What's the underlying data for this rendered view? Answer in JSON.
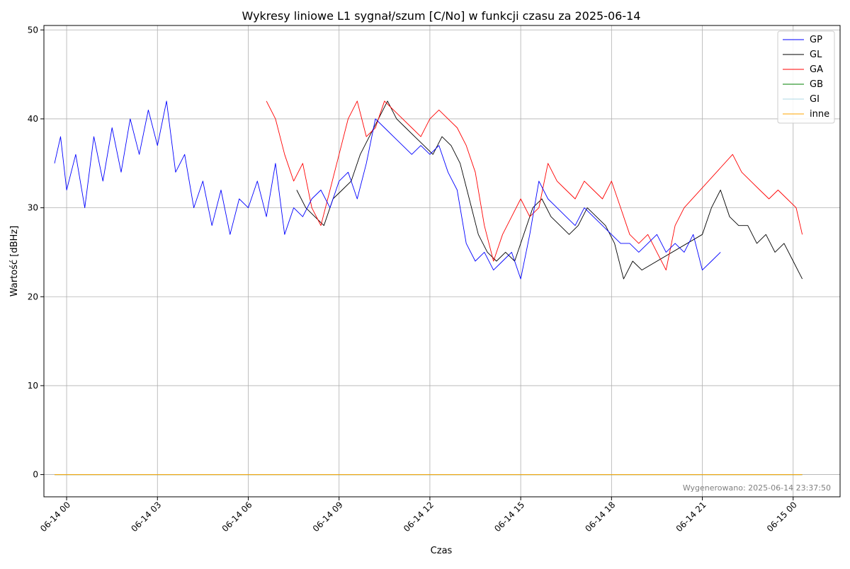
{
  "chart_data": {
    "type": "line",
    "title": "Wykresy liniowe L1 sygnał/szum [C/No] w funkcji czasu za 2025-06-14",
    "xlabel": "Czas",
    "ylabel": "Wartość [dBHz]",
    "xlim_hours": [
      -0.75,
      25.55
    ],
    "ylim": [
      -2.5,
      50.5
    ],
    "x_ticks": [
      {
        "hour": 0,
        "label": "06-14 00"
      },
      {
        "hour": 3,
        "label": "06-14 03"
      },
      {
        "hour": 6,
        "label": "06-14 06"
      },
      {
        "hour": 9,
        "label": "06-14 09"
      },
      {
        "hour": 12,
        "label": "06-14 12"
      },
      {
        "hour": 15,
        "label": "06-14 15"
      },
      {
        "hour": 18,
        "label": "06-14 18"
      },
      {
        "hour": 21,
        "label": "06-14 21"
      },
      {
        "hour": 24,
        "label": "06-15 00"
      }
    ],
    "y_ticks": [
      0,
      10,
      20,
      30,
      40,
      50
    ],
    "grid": true,
    "legend_position": "top-right",
    "footer": "Wygenerowano: 2025-06-14 23:37:50",
    "series": [
      {
        "name": "GP",
        "color": "#0000ff",
        "x": [
          -0.4,
          -0.2,
          0,
          0.3,
          0.6,
          0.9,
          1.2,
          1.5,
          1.8,
          2.1,
          2.4,
          2.7,
          3.0,
          3.3,
          3.6,
          3.9,
          4.2,
          4.5,
          4.8,
          5.1,
          5.4,
          5.7,
          6.0,
          6.3,
          6.6,
          6.9,
          7.2,
          7.5,
          7.8,
          8.1,
          8.4,
          8.7,
          9.0,
          9.3,
          9.6,
          9.9,
          10.2,
          10.5,
          10.8,
          11.1,
          11.4,
          11.7,
          12.0,
          12.3,
          12.6,
          12.9,
          13.2,
          13.5,
          13.8,
          14.1,
          14.4,
          14.7,
          15.0,
          15.3,
          15.6,
          15.9,
          16.2,
          16.5,
          16.8,
          17.1,
          17.4,
          17.7,
          18.0,
          18.3,
          18.6,
          18.9,
          19.2,
          19.5,
          19.8,
          20.1,
          20.4,
          20.7,
          21.0,
          21.3,
          21.6
        ],
        "values": [
          35,
          38,
          32,
          36,
          30,
          38,
          33,
          39,
          34,
          40,
          36,
          41,
          37,
          42,
          34,
          36,
          30,
          33,
          28,
          32,
          27,
          31,
          30,
          33,
          29,
          35,
          27,
          30,
          29,
          31,
          32,
          30,
          33,
          34,
          31,
          35,
          40,
          39,
          38,
          37,
          36,
          37,
          36,
          37,
          34,
          32,
          26,
          24,
          25,
          23,
          24,
          25,
          22,
          27,
          33,
          31,
          30,
          29,
          28,
          30,
          29,
          28,
          27,
          26,
          26,
          25,
          26,
          27,
          25,
          26,
          25,
          27,
          23,
          24,
          25
        ]
      },
      {
        "name": "GL",
        "color": "#000000",
        "x": [
          7.6,
          7.9,
          8.2,
          8.5,
          8.8,
          9.1,
          9.4,
          9.7,
          10.0,
          10.3,
          10.6,
          10.9,
          11.2,
          11.5,
          11.8,
          12.1,
          12.4,
          12.7,
          13.0,
          13.3,
          13.6,
          13.9,
          14.2,
          14.5,
          14.8,
          15.1,
          15.4,
          15.7,
          16.0,
          16.3,
          16.6,
          16.9,
          17.2,
          17.5,
          17.8,
          18.1,
          18.4,
          18.7,
          19.0,
          21.0,
          21.3,
          21.6,
          21.9,
          22.2,
          22.5,
          22.8,
          23.1,
          23.4,
          23.7,
          24.0,
          24.3
        ],
        "values": [
          32,
          30,
          29,
          28,
          31,
          32,
          33,
          36,
          38,
          40,
          42,
          40,
          39,
          38,
          37,
          36,
          38,
          37,
          35,
          31,
          27,
          25,
          24,
          25,
          24,
          27,
          30,
          31,
          29,
          28,
          27,
          28,
          30,
          29,
          28,
          26,
          22,
          24,
          23,
          27,
          30,
          32,
          29,
          28,
          28,
          26,
          27,
          25,
          26,
          24,
          22
        ]
      },
      {
        "name": "GA",
        "color": "#ff0000",
        "x": [
          6.6,
          6.9,
          7.2,
          7.5,
          7.8,
          8.1,
          8.4,
          8.7,
          9.0,
          9.3,
          9.6,
          9.9,
          10.2,
          10.5,
          10.8,
          11.1,
          11.4,
          11.7,
          12.0,
          12.3,
          12.6,
          12.9,
          13.2,
          13.5,
          13.8,
          14.1,
          14.4,
          14.7,
          15.0,
          15.3,
          15.6,
          15.9,
          16.2,
          16.5,
          16.8,
          17.1,
          17.4,
          17.7,
          18.0,
          18.3,
          18.6,
          18.9,
          19.2,
          19.5,
          19.8,
          20.1,
          20.4,
          22.0,
          22.3,
          22.6,
          22.9,
          23.2,
          23.5,
          23.8,
          24.1,
          24.3
        ],
        "values": [
          42,
          40,
          36,
          33,
          35,
          30,
          28,
          32,
          36,
          40,
          42,
          38,
          39,
          42,
          41,
          40,
          39,
          38,
          40,
          41,
          40,
          39,
          37,
          34,
          28,
          24,
          27,
          29,
          31,
          29,
          30,
          35,
          33,
          32,
          31,
          33,
          32,
          31,
          33,
          30,
          27,
          26,
          27,
          25,
          23,
          28,
          30,
          36,
          34,
          33,
          32,
          31,
          32,
          31,
          30,
          27
        ]
      },
      {
        "name": "GB",
        "color": "#008000",
        "x": [
          -0.4,
          24.3
        ],
        "values": [
          0,
          0
        ]
      },
      {
        "name": "GI",
        "color": "#add8e6",
        "x": [
          -0.4,
          24.3
        ],
        "values": [
          0,
          0
        ]
      },
      {
        "name": "inne",
        "color": "#ffa500",
        "x": [
          -0.4,
          24.3
        ],
        "values": [
          0,
          0
        ]
      }
    ]
  }
}
